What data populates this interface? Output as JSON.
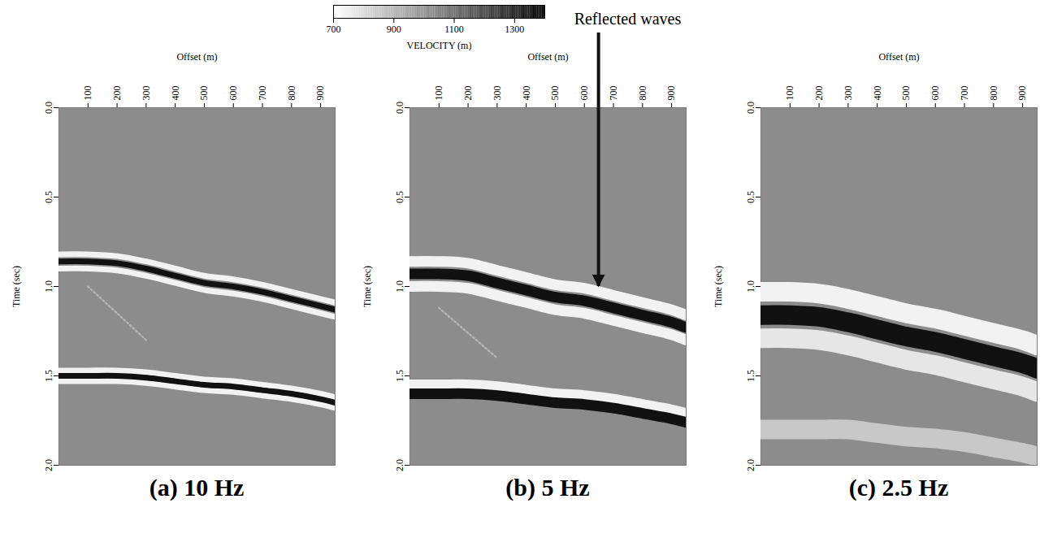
{
  "chart_data": [
    {
      "type": "line",
      "title": "(a) 10 Hz",
      "xlabel": "Offset (m)",
      "ylabel": "Time (sec)",
      "xlim": [
        0,
        950
      ],
      "ylim": [
        0,
        2.0
      ],
      "xticks": [
        100,
        200,
        300,
        400,
        500,
        600,
        700,
        800,
        900
      ],
      "yticks": [
        {
          "value": 0,
          "label": "0.0"
        },
        0.5,
        {
          "value": 1,
          "label": "1.0"
        },
        1.5,
        {
          "value": 2,
          "label": "2.0"
        }
      ],
      "x": [
        0,
        100,
        200,
        300,
        400,
        500,
        600,
        700,
        800,
        900,
        950
      ],
      "series": [
        {
          "color": "#f2f2f2",
          "values": [
            0.82,
            0.82,
            0.83,
            0.86,
            0.9,
            0.94,
            0.96,
            0.99,
            1.03,
            1.07,
            1.09
          ]
        },
        {
          "color": "#f2f2f2",
          "values": [
            0.9,
            0.9,
            0.91,
            0.94,
            0.98,
            1.02,
            1.04,
            1.07,
            1.11,
            1.15,
            1.17
          ]
        },
        {
          "color": "#111111",
          "values": [
            0.86,
            0.86,
            0.87,
            0.9,
            0.94,
            0.98,
            1.0,
            1.03,
            1.07,
            1.11,
            1.13
          ]
        },
        {
          "color": "#f2f2f2",
          "values": [
            1.47,
            1.47,
            1.47,
            1.48,
            1.5,
            1.52,
            1.53,
            1.55,
            1.57,
            1.6,
            1.62
          ]
        },
        {
          "color": "#f2f2f2",
          "values": [
            1.53,
            1.53,
            1.53,
            1.54,
            1.56,
            1.58,
            1.59,
            1.61,
            1.63,
            1.66,
            1.68
          ]
        },
        {
          "color": "#111111",
          "values": [
            1.5,
            1.5,
            1.5,
            1.51,
            1.53,
            1.55,
            1.56,
            1.58,
            1.6,
            1.63,
            1.65
          ]
        },
        {
          "color": "#b4b4b4",
          "line_style": "dotted",
          "values": [
            null,
            1.0,
            1.15,
            1.3,
            null,
            null,
            null,
            null,
            null,
            null,
            null
          ]
        }
      ]
    },
    {
      "type": "line",
      "title": "(b) 5 Hz",
      "xlabel": "Offset (m)",
      "ylabel": "Time (sec)",
      "xlim": [
        0,
        950
      ],
      "ylim": [
        0,
        2.0
      ],
      "xticks": [
        100,
        200,
        300,
        400,
        500,
        600,
        700,
        800,
        900
      ],
      "yticks": [
        {
          "value": 0,
          "label": "0.0"
        },
        0.5,
        {
          "value": 1,
          "label": "1.0"
        },
        1.5,
        {
          "value": 2,
          "label": "2.0"
        }
      ],
      "x": [
        0,
        100,
        200,
        300,
        400,
        500,
        600,
        700,
        800,
        900,
        950
      ],
      "series": [
        {
          "color": "#f2f2f2",
          "values": [
            0.86,
            0.86,
            0.87,
            0.91,
            0.95,
            0.99,
            1.01,
            1.05,
            1.09,
            1.13,
            1.16
          ]
        },
        {
          "color": "#f2f2f2",
          "values": [
            1.0,
            1.0,
            1.01,
            1.05,
            1.09,
            1.13,
            1.15,
            1.19,
            1.23,
            1.27,
            1.3
          ]
        },
        {
          "color": "#111111",
          "values": [
            0.93,
            0.93,
            0.94,
            0.98,
            1.02,
            1.06,
            1.08,
            1.12,
            1.16,
            1.2,
            1.23
          ]
        },
        {
          "color": "#f2f2f2",
          "values": [
            1.55,
            1.55,
            1.55,
            1.56,
            1.58,
            1.6,
            1.61,
            1.63,
            1.66,
            1.69,
            1.71
          ]
        },
        {
          "color": "#111111",
          "values": [
            1.6,
            1.6,
            1.6,
            1.61,
            1.63,
            1.65,
            1.66,
            1.68,
            1.71,
            1.74,
            1.76
          ]
        },
        {
          "color": "#b4b4b4",
          "line_style": "dotted",
          "values": [
            null,
            1.12,
            1.26,
            1.4,
            null,
            null,
            null,
            null,
            null,
            null,
            null
          ]
        }
      ],
      "annotations": [
        {
          "text": "Reflected waves",
          "x": 650,
          "y": 1.0
        }
      ],
      "colorbar": {
        "label": "VELOCITY (m)",
        "range": [
          700,
          1400
        ],
        "ticks": [
          700,
          900,
          1100,
          1300
        ]
      }
    },
    {
      "type": "line",
      "title": "(c) 2.5 Hz",
      "xlabel": "Offset (m)",
      "ylabel": "Time (sec)",
      "xlim": [
        0,
        950
      ],
      "ylim": [
        0,
        2.0
      ],
      "xticks": [
        100,
        200,
        300,
        400,
        500,
        600,
        700,
        800,
        900
      ],
      "yticks": [
        {
          "value": 0,
          "label": "0.0"
        },
        0.5,
        {
          "value": 1,
          "label": "1.0"
        },
        1.5,
        {
          "value": 2,
          "label": "2.0"
        }
      ],
      "x": [
        0,
        100,
        200,
        300,
        400,
        500,
        600,
        700,
        800,
        900,
        950
      ],
      "series": [
        {
          "color": "#f2f2f2",
          "values": [
            1.03,
            1.03,
            1.04,
            1.07,
            1.11,
            1.15,
            1.18,
            1.22,
            1.26,
            1.3,
            1.33
          ]
        },
        {
          "color": "#e6e6e6",
          "values": [
            1.29,
            1.29,
            1.3,
            1.33,
            1.37,
            1.41,
            1.44,
            1.48,
            1.52,
            1.56,
            1.59
          ]
        },
        {
          "color": "#111111",
          "values": [
            1.16,
            1.16,
            1.17,
            1.2,
            1.24,
            1.28,
            1.31,
            1.35,
            1.39,
            1.43,
            1.46
          ]
        },
        {
          "color": "#c8c8c8",
          "values": [
            1.8,
            1.8,
            1.8,
            1.8,
            1.82,
            1.84,
            1.85,
            1.87,
            1.9,
            1.93,
            1.95
          ]
        }
      ]
    }
  ]
}
